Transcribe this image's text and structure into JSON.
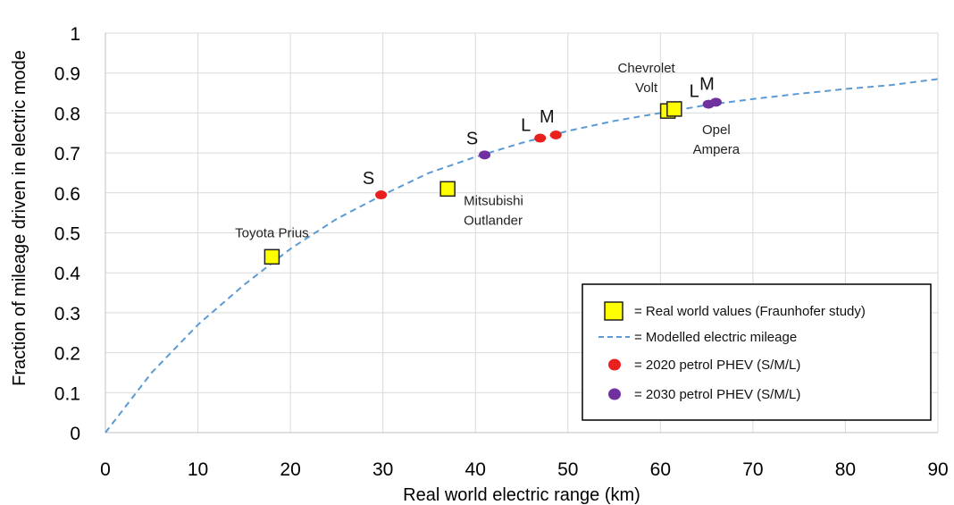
{
  "chart_data": {
    "type": "scatter",
    "title": "",
    "xlabel": "Real world electric range (km)",
    "ylabel": "Fraction of mileage driven in electric mode",
    "xlim": [
      0,
      90
    ],
    "ylim": [
      0,
      1
    ],
    "x_ticks": [
      "0",
      "10",
      "20",
      "30",
      "40",
      "50",
      "60",
      "70",
      "80",
      "90"
    ],
    "y_ticks": [
      "0",
      "0.1",
      "0.2",
      "0.3",
      "0.4",
      "0.5",
      "0.6",
      "0.7",
      "0.8",
      "0.9",
      "1"
    ],
    "grid": true,
    "legend_position": "bottom-right",
    "series": [
      {
        "name": "= Real world values (Fraunhofer study)",
        "marker": "square",
        "color": "#ffff00",
        "points": [
          {
            "x": 18,
            "y": 0.44,
            "label": "Toyota Prius"
          },
          {
            "x": 37,
            "y": 0.61,
            "label": "Mitsubishi Outlander"
          },
          {
            "x": 60.8,
            "y": 0.805,
            "label": "Chevrolet Volt"
          },
          {
            "x": 61.5,
            "y": 0.81,
            "label": "Opel Ampera"
          }
        ]
      },
      {
        "name": "= Modelled electric mileage",
        "type": "line",
        "style": "dashed",
        "color": "#5b9bd5",
        "x": [
          0,
          5,
          10,
          15,
          20,
          25,
          30,
          35,
          40,
          45,
          50,
          55,
          60,
          65,
          70,
          75,
          80,
          85,
          90
        ],
        "y": [
          0,
          0.15,
          0.27,
          0.37,
          0.46,
          0.535,
          0.595,
          0.65,
          0.69,
          0.725,
          0.755,
          0.78,
          0.8,
          0.82,
          0.835,
          0.848,
          0.86,
          0.87,
          0.885
        ]
      },
      {
        "name": "= 2020 petrol PHEV (S/M/L)",
        "marker": "circle",
        "color": "#e8201e",
        "points": [
          {
            "x": 29.8,
            "y": 0.595,
            "label": "S"
          },
          {
            "x": 48.7,
            "y": 0.745,
            "label": "M"
          },
          {
            "x": 47,
            "y": 0.737,
            "label": "L"
          }
        ]
      },
      {
        "name": "= 2030 petrol PHEV (S/M/L)",
        "marker": "circle",
        "color": "#7030a0",
        "points": [
          {
            "x": 41,
            "y": 0.695,
            "label": "S"
          },
          {
            "x": 66,
            "y": 0.827,
            "label": "M"
          },
          {
            "x": 65.2,
            "y": 0.822,
            "label": "L"
          }
        ]
      }
    ]
  }
}
